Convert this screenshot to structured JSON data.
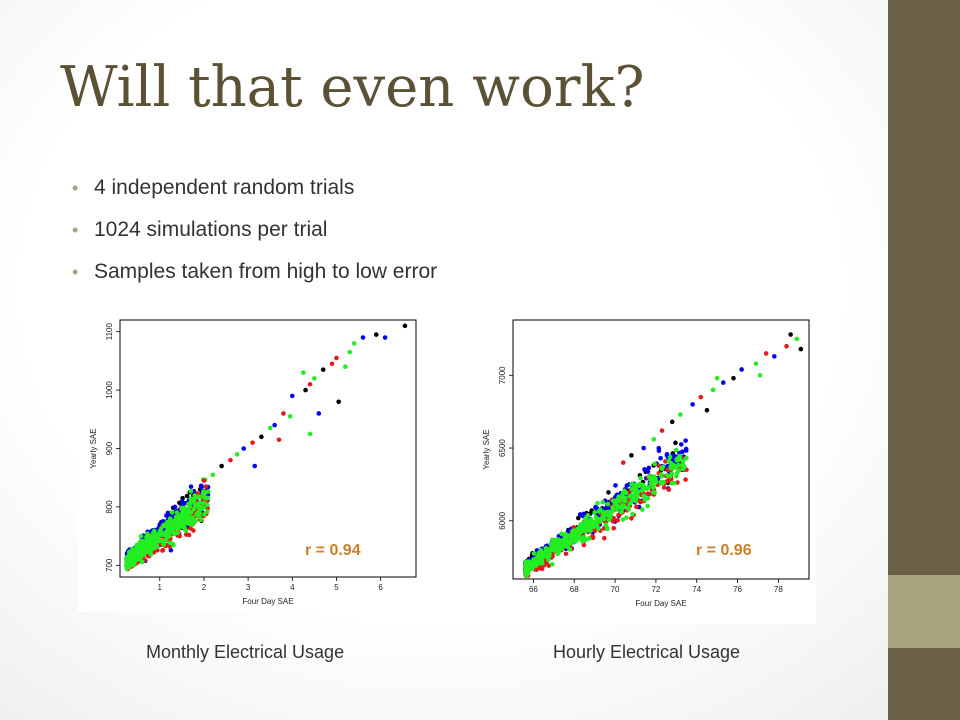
{
  "slide": {
    "title": "Will that even work?",
    "bullets": [
      "4 independent random trials",
      "1024 simulations per trial",
      "Samples taken from high to low error"
    ],
    "colors": {
      "sidebar": "#6b6148",
      "accent": "#a9a37d",
      "title": "#5b5135"
    }
  },
  "chart_data": [
    {
      "type": "scatter",
      "caption": "Monthly Electrical Usage",
      "xlabel": "Four Day SAE",
      "ylabel": "Yearly SAE",
      "xlim": [
        0.1,
        6.8
      ],
      "ylim": [
        680,
        1120
      ],
      "xticks": [
        1,
        2,
        3,
        4,
        5,
        6
      ],
      "yticks": [
        700,
        800,
        900,
        1000,
        1100
      ],
      "annotation": "r = 0.94",
      "series_colors": [
        "#000000",
        "#e41a1c",
        "#0000ee",
        "#22ee22"
      ],
      "outliers": [
        {
          "x": 6.55,
          "y": 1110,
          "c": 0
        },
        {
          "x": 6.1,
          "y": 1090,
          "c": 2
        },
        {
          "x": 5.9,
          "y": 1095,
          "c": 0
        },
        {
          "x": 5.6,
          "y": 1090,
          "c": 2
        },
        {
          "x": 5.4,
          "y": 1080,
          "c": 3
        },
        {
          "x": 5.3,
          "y": 1065,
          "c": 3
        },
        {
          "x": 5.0,
          "y": 1055,
          "c": 1
        },
        {
          "x": 5.2,
          "y": 1040,
          "c": 3
        },
        {
          "x": 4.9,
          "y": 1045,
          "c": 1
        },
        {
          "x": 4.7,
          "y": 1035,
          "c": 0
        },
        {
          "x": 4.5,
          "y": 1020,
          "c": 3
        },
        {
          "x": 4.4,
          "y": 1010,
          "c": 1
        },
        {
          "x": 4.3,
          "y": 1000,
          "c": 0
        },
        {
          "x": 4.25,
          "y": 1030,
          "c": 3
        },
        {
          "x": 4.0,
          "y": 990,
          "c": 2
        },
        {
          "x": 3.8,
          "y": 960,
          "c": 1
        },
        {
          "x": 3.6,
          "y": 940,
          "c": 2
        },
        {
          "x": 3.5,
          "y": 935,
          "c": 3
        },
        {
          "x": 3.3,
          "y": 920,
          "c": 0
        },
        {
          "x": 3.1,
          "y": 910,
          "c": 1
        },
        {
          "x": 2.9,
          "y": 900,
          "c": 2
        },
        {
          "x": 2.75,
          "y": 890,
          "c": 3
        },
        {
          "x": 2.6,
          "y": 880,
          "c": 1
        },
        {
          "x": 2.4,
          "y": 870,
          "c": 0
        },
        {
          "x": 5.05,
          "y": 980,
          "c": 0
        },
        {
          "x": 4.6,
          "y": 960,
          "c": 2
        },
        {
          "x": 4.4,
          "y": 925,
          "c": 3
        },
        {
          "x": 3.95,
          "y": 955,
          "c": 3
        },
        {
          "x": 3.7,
          "y": 915,
          "c": 1
        },
        {
          "x": 3.15,
          "y": 870,
          "c": 2
        },
        {
          "x": 2.2,
          "y": 855,
          "c": 3
        },
        {
          "x": 2.0,
          "y": 845,
          "c": 1
        }
      ],
      "cloud": {
        "x_min": 0.25,
        "x_max": 2.1,
        "y_at_min": 705,
        "slope": 60,
        "spread": 30,
        "n": 900
      }
    },
    {
      "type": "scatter",
      "caption": "Hourly Electrical Usage",
      "xlabel": "Four Day SAE",
      "ylabel": "Yearly SAE",
      "xlim": [
        65.0,
        79.5
      ],
      "ylim": [
        5600,
        7380
      ],
      "xticks": [
        66,
        68,
        70,
        72,
        74,
        76,
        78
      ],
      "yticks": [
        6000,
        6500,
        7000
      ],
      "annotation": "r = 0.96",
      "series_colors": [
        "#000000",
        "#e41a1c",
        "#0000ee",
        "#22ee22"
      ],
      "outliers": [
        {
          "x": 78.6,
          "y": 7280,
          "c": 0
        },
        {
          "x": 78.9,
          "y": 7250,
          "c": 3
        },
        {
          "x": 79.1,
          "y": 7180,
          "c": 0
        },
        {
          "x": 78.4,
          "y": 7200,
          "c": 1
        },
        {
          "x": 77.8,
          "y": 7130,
          "c": 2
        },
        {
          "x": 77.4,
          "y": 7150,
          "c": 1
        },
        {
          "x": 76.9,
          "y": 7080,
          "c": 3
        },
        {
          "x": 76.2,
          "y": 7040,
          "c": 2
        },
        {
          "x": 75.8,
          "y": 6980,
          "c": 0
        },
        {
          "x": 75.3,
          "y": 6950,
          "c": 2
        },
        {
          "x": 74.8,
          "y": 6900,
          "c": 3
        },
        {
          "x": 74.2,
          "y": 6850,
          "c": 1
        },
        {
          "x": 73.8,
          "y": 6800,
          "c": 2
        },
        {
          "x": 73.2,
          "y": 6730,
          "c": 3
        },
        {
          "x": 72.8,
          "y": 6680,
          "c": 0
        },
        {
          "x": 72.3,
          "y": 6620,
          "c": 1
        },
        {
          "x": 71.9,
          "y": 6560,
          "c": 3
        },
        {
          "x": 71.4,
          "y": 6500,
          "c": 2
        },
        {
          "x": 70.8,
          "y": 6450,
          "c": 0
        },
        {
          "x": 70.4,
          "y": 6400,
          "c": 1
        },
        {
          "x": 77.1,
          "y": 7000,
          "c": 3
        },
        {
          "x": 75.0,
          "y": 6980,
          "c": 3
        },
        {
          "x": 74.5,
          "y": 6760,
          "c": 0
        }
      ],
      "cloud": {
        "x_min": 65.6,
        "x_max": 73.5,
        "y_at_min": 5670,
        "slope": 95,
        "spread": 120,
        "n": 950
      }
    }
  ]
}
